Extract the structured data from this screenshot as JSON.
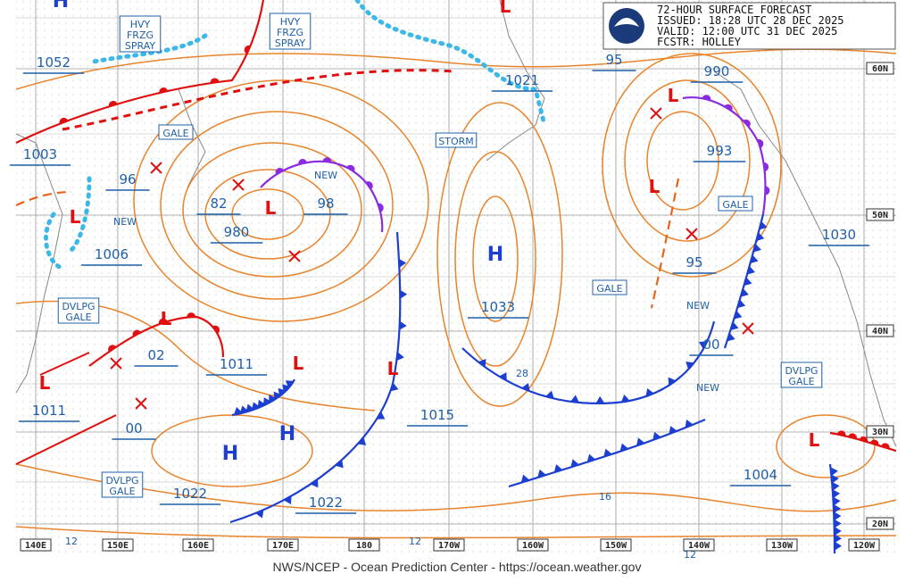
{
  "header": {
    "title": "72-HOUR SURFACE FORECAST",
    "issued": "ISSUED: 18:28 UTC 28 DEC 2025",
    "valid": "VALID:  12:00 UTC 31 DEC 2025",
    "forecaster": "FCSTR:  HOLLEY"
  },
  "footer": "NWS/NCEP - Ocean Prediction Center - https://ocean.weather.gov",
  "longitude_labels": [
    "140E",
    "150E",
    "160E",
    "170E",
    "180",
    "170W",
    "160W",
    "150W",
    "140W",
    "130W",
    "120W"
  ],
  "latitude_labels": [
    "60N",
    "50N",
    "40N",
    "30N",
    "20N"
  ],
  "warnings": [
    {
      "lines": [
        "HVY",
        "FRZG",
        "SPRAY"
      ]
    },
    {
      "lines": [
        "HVY",
        "FRZG",
        "SPRAY"
      ]
    },
    {
      "lines": [
        "GALE"
      ]
    },
    {
      "lines": [
        "STORM"
      ]
    },
    {
      "lines": [
        "GALE"
      ]
    },
    {
      "lines": [
        "GALE"
      ]
    },
    {
      "lines": [
        "DVLPG",
        "GALE"
      ]
    },
    {
      "lines": [
        "DVLPG",
        "GALE"
      ]
    },
    {
      "lines": [
        "DVLPG",
        "GALE"
      ]
    }
  ],
  "pressure_labels": [
    "1052",
    "1003",
    "96",
    "1006",
    "82",
    "980",
    "98",
    "02",
    "1011",
    "1011",
    "00",
    "1022",
    "1022",
    "1015",
    "1033",
    "1021",
    "95",
    "990",
    "993",
    "95",
    "00",
    "1030",
    "1004"
  ],
  "new_labels": [
    "NEW",
    "NEW",
    "NEW",
    "NEW"
  ],
  "centers": [
    "H",
    "H",
    "H",
    "H",
    "L",
    "L",
    "L",
    "L",
    "L",
    "L",
    "L",
    "L",
    "L",
    "L"
  ],
  "contour_labels": [
    "28",
    "16",
    "12",
    "12",
    "12"
  ]
}
